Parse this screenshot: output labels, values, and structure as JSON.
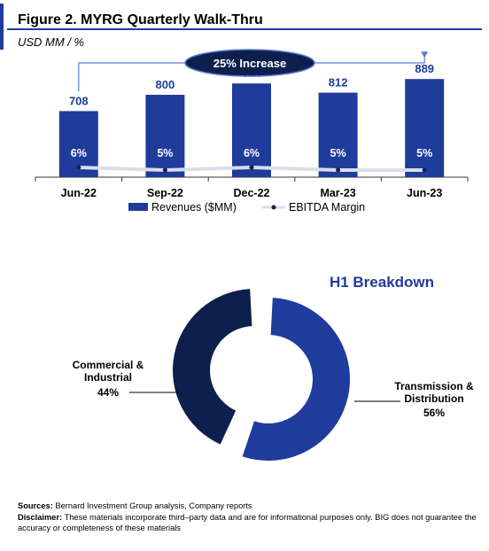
{
  "header": {
    "title": "Figure 2. MYRG Quarterly Walk-Thru",
    "subtitle": "USD MM / %"
  },
  "colors": {
    "accent": "#1f3c9c",
    "bar": "#1f3c9c",
    "dark_navy": "#0d1f4d",
    "line": "#d9dee8"
  },
  "chart_data": [
    {
      "type": "bar",
      "categories": [
        "Jun-22",
        "Sep-22",
        "Dec-22",
        "Mar-23",
        "Jun-23"
      ],
      "series": [
        {
          "name": "Revenues ($MM)",
          "type": "bar",
          "values": [
            708,
            800,
            864,
            812,
            889
          ]
        },
        {
          "name": "EBITDA Margin",
          "type": "line",
          "values": [
            6,
            5,
            6,
            5,
            5
          ],
          "labels": [
            "6%",
            "5%",
            "6%",
            "5%",
            "5%"
          ]
        }
      ],
      "annotation": "25% Increase",
      "legend": "bottom"
    },
    {
      "type": "pie",
      "title": "H1 Breakdown",
      "slices": [
        {
          "label": "Transmission & Distribution",
          "value": 56,
          "value_label": "56%"
        },
        {
          "label": "Commercial & Industrial",
          "value": 44,
          "value_label": "44%"
        }
      ]
    }
  ],
  "footer": {
    "sources_label": "Sources:",
    "sources_text": "Bernard Investment Group analysis, Company reports",
    "disclaimer_label": "Disclaimer:",
    "disclaimer_text": "These materials incorporate third–party data and are for informational purposes only. BIG does not guarantee the accuracy or completeness of these materials"
  }
}
